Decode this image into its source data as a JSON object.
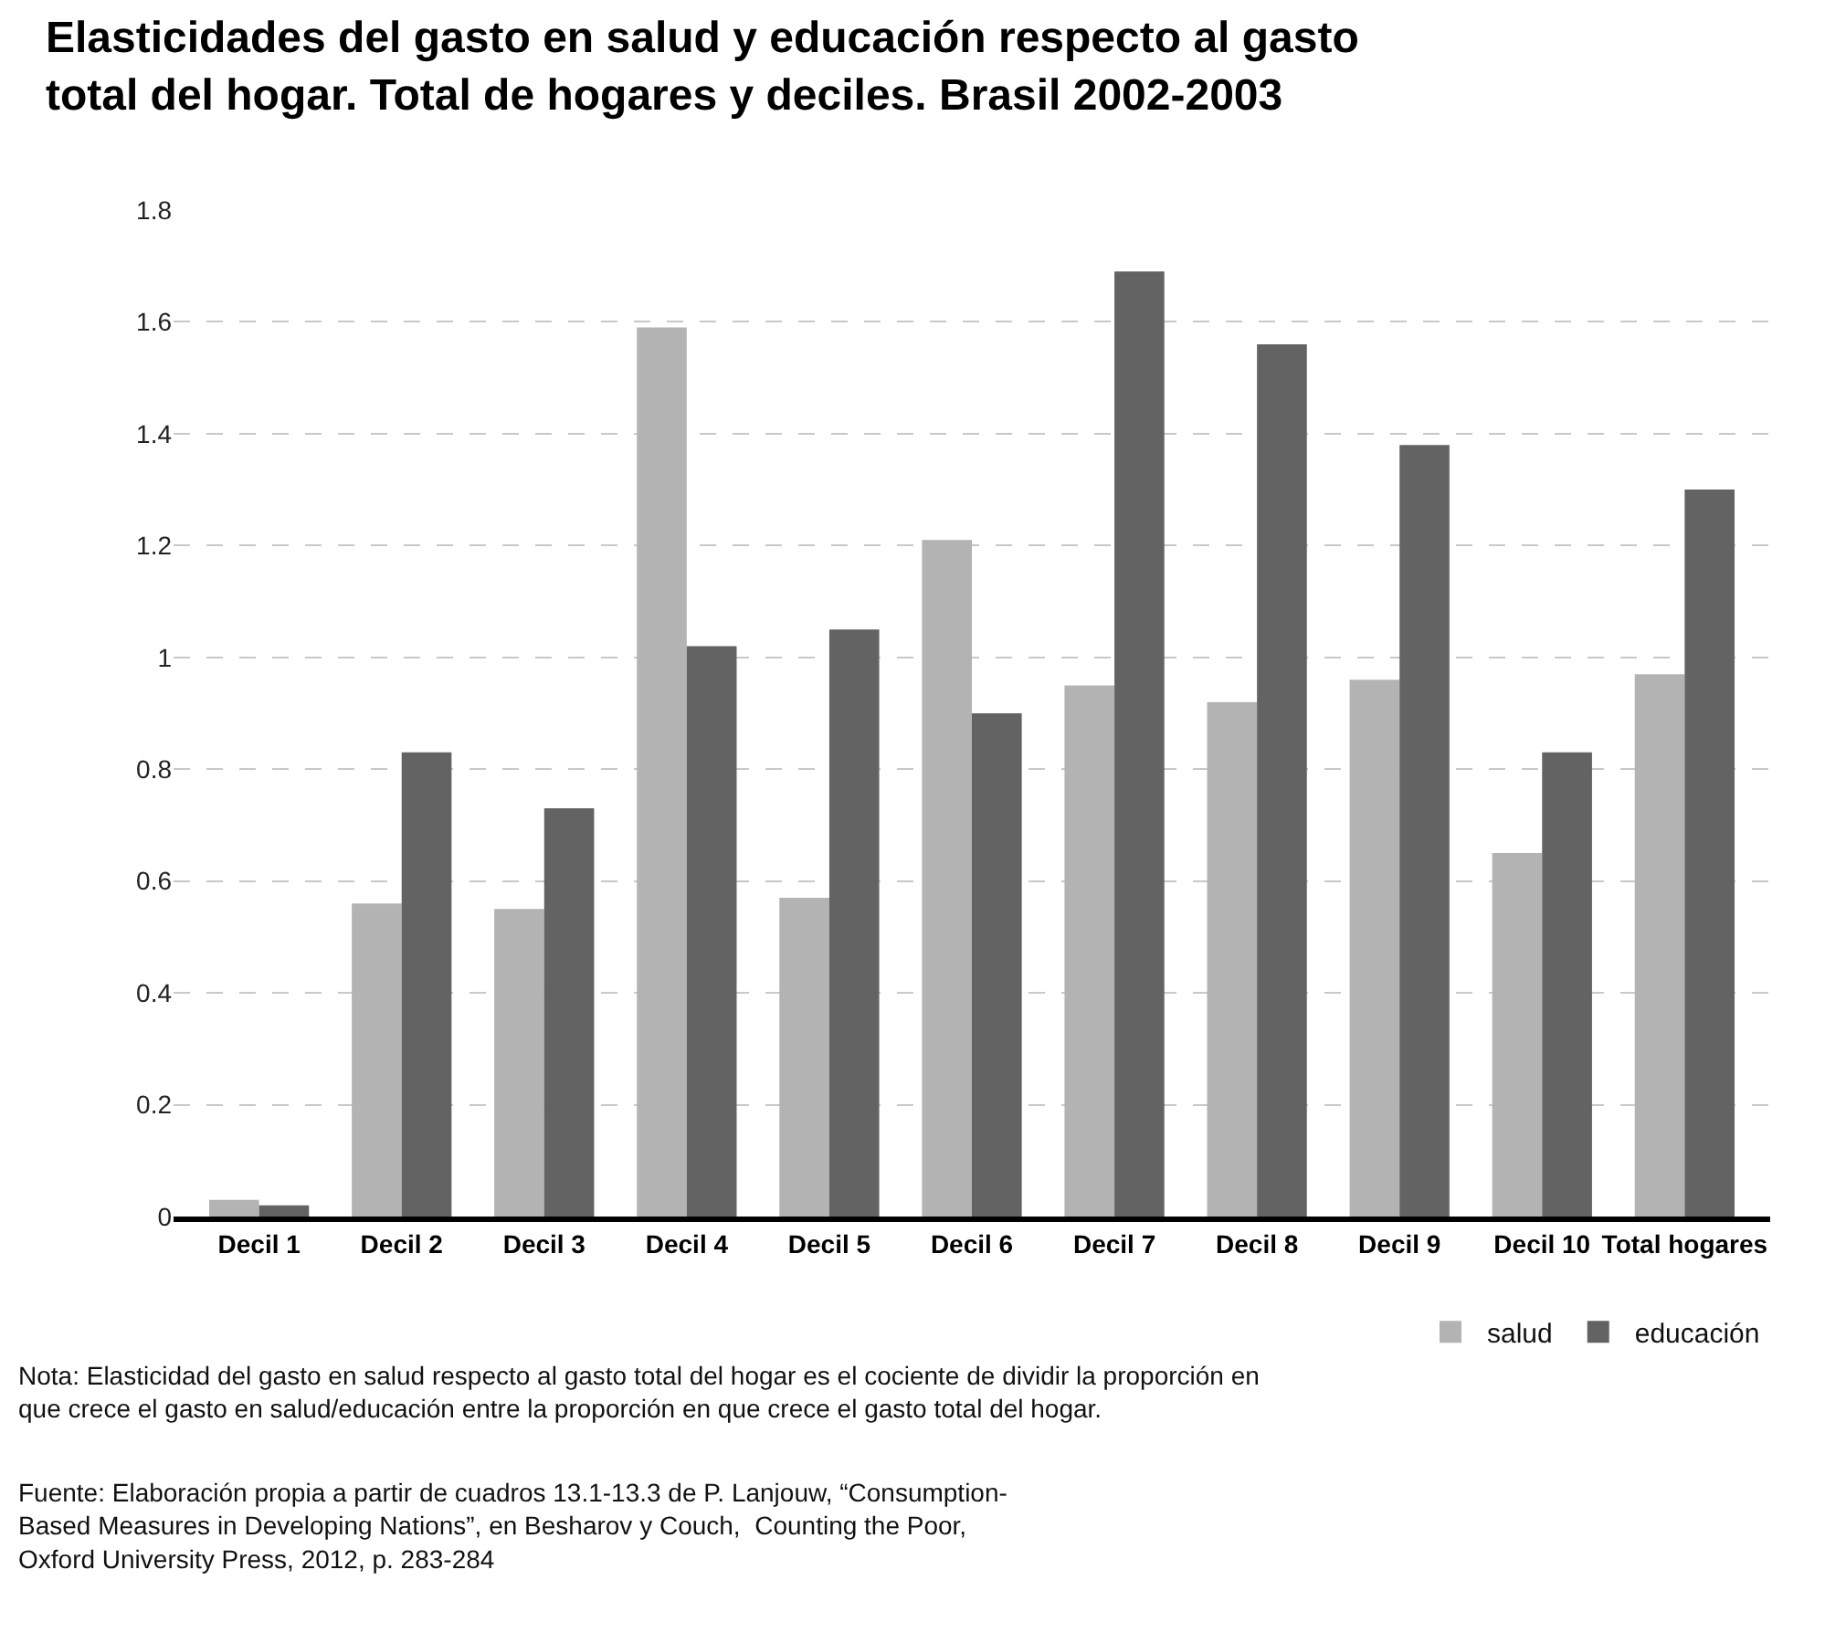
{
  "chart_data": {
    "type": "bar",
    "title": "Elasticidades del gasto en salud y educación respecto al gasto\ntotal del hogar. Total de hogares y deciles. Brasil 2002-2003",
    "categories": [
      "Decil 1",
      "Decil 2",
      "Decil 3",
      "Decil 4",
      "Decil 5",
      "Decil 6",
      "Decil 7",
      "Decil 8",
      "Decil 9",
      "Decil 10",
      "Total hogares"
    ],
    "series": [
      {
        "name": "salud",
        "color": "#b3b3b3",
        "values": [
          0.03,
          0.56,
          0.55,
          1.59,
          0.57,
          1.21,
          0.95,
          0.92,
          0.96,
          0.65,
          0.97
        ]
      },
      {
        "name": "educación",
        "color": "#636363",
        "values": [
          0.02,
          0.83,
          0.73,
          1.02,
          1.05,
          0.9,
          1.69,
          1.56,
          1.38,
          0.83,
          1.3
        ]
      }
    ],
    "ylim": [
      0,
      1.8
    ],
    "yticks": [
      0,
      0.2,
      0.4,
      0.6,
      0.8,
      1,
      1.2,
      1.4,
      1.6,
      1.8
    ],
    "grid": "y",
    "legend": "bottom right",
    "annotations": [
      "Nota: Elasticidad del gasto en salud respecto al gasto total del hogar es el cociente de dividir la proporción en\nque crece el gasto en salud/educación entre la proporción en que crece el gasto total del hogar.",
      "Fuente: Elaboración propia a partir de cuadros 13.1-13.3 de P. Lanjouw, “Consumption-\nBased Measures in Developing Nations”, en Besharov y Couch,  Counting the Poor,\nOxford University Press, 2012, p. 283-284"
    ]
  }
}
